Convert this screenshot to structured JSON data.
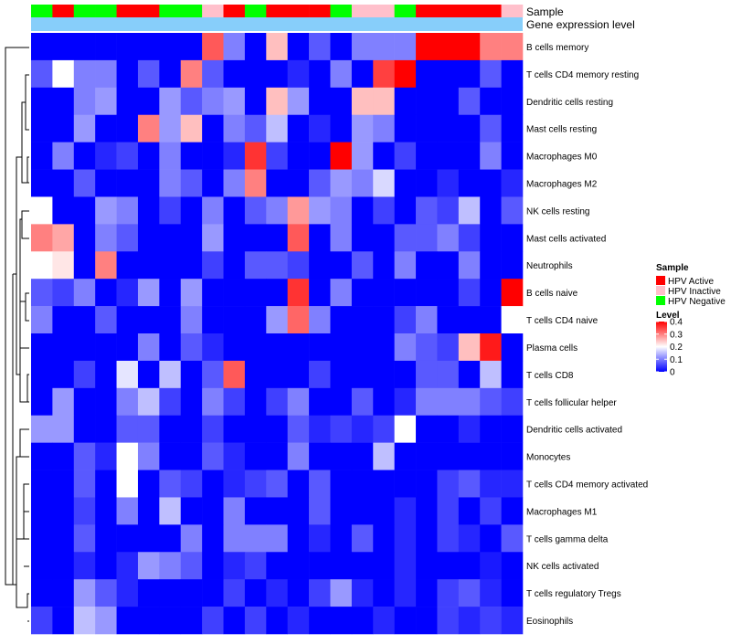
{
  "chart_data": {
    "type": "heatmap",
    "title": "",
    "annotation_labels": [
      "Sample",
      "Gene expression level"
    ],
    "sample_annotation": [
      "Negative",
      "Active",
      "Negative",
      "Negative",
      "Active",
      "Active",
      "Negative",
      "Negative",
      "Inactive",
      "Active",
      "Negative",
      "Active",
      "Active",
      "Active",
      "Negative",
      "Inactive",
      "Inactive",
      "Negative",
      "Active",
      "Active",
      "Active",
      "Active",
      "Inactive"
    ],
    "rows": [
      "B cells memory",
      "T cells CD4 memory resting",
      "Dendritic cells resting",
      "Mast cells resting",
      "Macrophages M0",
      "Macrophages M2",
      "NK cells resting",
      "Mast cells activated",
      "Neutrophils",
      "B cells naive",
      "T cells CD4 naive",
      "Plasma cells",
      "T cells CD8",
      "T cells follicular helper",
      "Dendritic cells activated",
      "Monocytes",
      "T cells CD4 memory activated",
      "Macrophages M1",
      "T cells gamma delta",
      "NK cells activated",
      "T cells regulatory  Tregs",
      "Eosinophils"
    ],
    "values": [
      [
        0,
        0,
        0,
        0,
        0,
        0,
        0,
        0,
        0.33,
        0.1,
        0,
        0.25,
        0,
        0.07,
        0,
        0.1,
        0.1,
        0.1,
        0.4,
        0.4,
        0.4,
        0.3,
        0.3
      ],
      [
        0.07,
        0.2,
        0.1,
        0.1,
        0,
        0.07,
        0,
        0.3,
        0.07,
        0,
        0,
        0,
        0.03,
        0,
        0.1,
        0,
        0.35,
        0.4,
        0,
        0,
        0,
        0.07,
        0
      ],
      [
        0,
        0,
        0.1,
        0.12,
        0,
        0,
        0.12,
        0.07,
        0.1,
        0.12,
        0,
        0.25,
        0.12,
        0,
        0,
        0.25,
        0.25,
        0,
        0,
        0,
        0.07,
        0,
        0
      ],
      [
        0,
        0,
        0.12,
        0,
        0,
        0.3,
        0.12,
        0.25,
        0,
        0.1,
        0.07,
        0.15,
        0,
        0.03,
        0,
        0.12,
        0.1,
        0,
        0,
        0,
        0,
        0.07,
        0
      ],
      [
        0,
        0.1,
        0,
        0.03,
        0.05,
        0,
        0.1,
        0,
        0,
        0.03,
        0.36,
        0.05,
        0,
        0,
        0.4,
        0.12,
        0,
        0.05,
        0,
        0,
        0,
        0.1,
        0
      ],
      [
        0,
        0,
        0.07,
        0,
        0,
        0,
        0.1,
        0.07,
        0,
        0.1,
        0.3,
        0,
        0,
        0.07,
        0.12,
        0.1,
        0.17,
        0,
        0,
        0.03,
        0,
        0,
        0.03
      ],
      [
        0.2,
        0,
        0,
        0.12,
        0.1,
        0,
        0.05,
        0,
        0.1,
        0,
        0.07,
        0.1,
        0.28,
        0.12,
        0.1,
        0,
        0.05,
        0,
        0.07,
        0.05,
        0.15,
        0,
        0.07
      ],
      [
        0.3,
        0.27,
        0,
        0.1,
        0.07,
        0,
        0,
        0,
        0.12,
        0,
        0,
        0,
        0.33,
        0,
        0.1,
        0,
        0,
        0.07,
        0.07,
        0.1,
        0.05,
        0,
        0
      ],
      [
        0.2,
        0.22,
        0,
        0.3,
        0,
        0,
        0,
        0,
        0.05,
        0,
        0.07,
        0.07,
        0.05,
        0,
        0,
        0.07,
        0,
        0.1,
        0,
        0,
        0.1,
        0,
        0
      ],
      [
        0.07,
        0.05,
        0.1,
        0,
        0.03,
        0.12,
        0,
        0.12,
        0,
        0,
        0,
        0,
        0.36,
        0,
        0.1,
        0,
        0,
        0,
        0,
        0,
        0.05,
        0,
        0.4
      ],
      [
        0.1,
        0,
        0,
        0.07,
        0,
        0,
        0,
        0.1,
        0,
        0,
        0,
        0.12,
        0.32,
        0.1,
        0,
        0,
        0,
        0.05,
        0.1,
        0,
        0,
        0,
        0.2
      ],
      [
        0,
        0,
        0,
        0,
        0,
        0.1,
        0,
        0.07,
        0.03,
        0,
        0,
        0,
        0,
        0,
        0,
        0,
        0,
        0.1,
        0.07,
        0.05,
        0.25,
        0.38,
        0
      ],
      [
        0,
        0,
        0.05,
        0,
        0.18,
        0,
        0.15,
        0,
        0.07,
        0.33,
        0,
        0,
        0,
        0.05,
        0,
        0,
        0,
        0,
        0.07,
        0.07,
        0,
        0.15,
        0
      ],
      [
        0,
        0.12,
        0,
        0,
        0.1,
        0.15,
        0.05,
        0,
        0.1,
        0.05,
        0,
        0.05,
        0.1,
        0,
        0,
        0.07,
        0,
        0.03,
        0.1,
        0.1,
        0.1,
        0.07,
        0.05
      ],
      [
        0.12,
        0.12,
        0,
        0,
        0.07,
        0.07,
        0,
        0,
        0.05,
        0,
        0,
        0,
        0.07,
        0.03,
        0.05,
        0.03,
        0.05,
        0.2,
        0,
        0,
        0.03,
        0,
        0
      ],
      [
        0,
        0,
        0.07,
        0.03,
        0.2,
        0.1,
        0,
        0,
        0.07,
        0.03,
        0,
        0,
        0.1,
        0,
        0,
        0,
        0.15,
        0,
        0,
        0,
        0,
        0,
        0
      ],
      [
        0,
        0,
        0.07,
        0,
        0.2,
        0,
        0.07,
        0.05,
        0,
        0.03,
        0.05,
        0.07,
        0,
        0.07,
        0,
        0,
        0,
        0,
        0,
        0.05,
        0.07,
        0.03,
        0.03
      ],
      [
        0,
        0,
        0.05,
        0,
        0.1,
        0,
        0.15,
        0,
        0,
        0.1,
        0,
        0,
        0,
        0.07,
        0,
        0,
        0,
        0.03,
        0,
        0.05,
        0,
        0.05,
        0
      ],
      [
        0,
        0,
        0.07,
        0,
        0,
        0,
        0,
        0.1,
        0,
        0.1,
        0.1,
        0.1,
        0,
        0.03,
        0,
        0.07,
        0,
        0.03,
        0,
        0.05,
        0.03,
        0,
        0.07
      ],
      [
        0,
        0,
        0.03,
        0,
        0.03,
        0.12,
        0.1,
        0.07,
        0,
        0.03,
        0.05,
        0,
        0,
        0,
        0,
        0,
        0,
        0.03,
        0,
        0,
        0,
        0.02,
        0
      ],
      [
        0,
        0,
        0.12,
        0.07,
        0.03,
        0,
        0,
        0,
        0,
        0.05,
        0,
        0.03,
        0,
        0.05,
        0.12,
        0.03,
        0,
        0.03,
        0,
        0.05,
        0.07,
        0.03,
        0
      ],
      [
        0.05,
        0,
        0.15,
        0.12,
        0,
        0,
        0,
        0,
        0.05,
        0,
        0.05,
        0,
        0.03,
        0,
        0,
        0,
        0.03,
        0,
        0,
        0.05,
        0.03,
        0.05,
        0.03
      ]
    ],
    "legend": {
      "sample_title": "Sample",
      "sample_levels": [
        {
          "key": "Active",
          "label": "HPV Active",
          "color": "#ff0000"
        },
        {
          "key": "Inactive",
          "label": "HPV Inactive",
          "color": "#ffc0cb"
        },
        {
          "key": "Negative",
          "label": "HPV Negative",
          "color": "#00ff00"
        }
      ],
      "level_title": "Level",
      "level_ticks": [
        "0.4",
        "0.3",
        "0.2",
        "0.1",
        "0"
      ],
      "level_range": [
        0,
        0.4
      ],
      "colors": {
        "low": "#0000ff",
        "mid": "#ffffff",
        "high": "#ff0000"
      }
    },
    "expression_bar_color": "#87cefa"
  }
}
